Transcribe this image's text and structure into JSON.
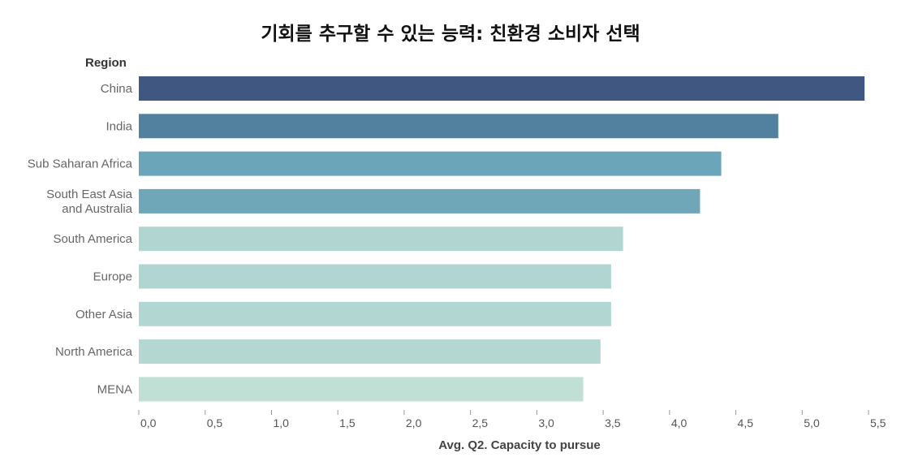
{
  "chart_data": {
    "type": "bar",
    "orientation": "horizontal",
    "title": "기회를 추구할 수 있는 능력: 친환경 소비자 선택",
    "ylabel": "Region",
    "xlabel": "Avg. Q2. Capacity to pursue",
    "categories": [
      "China",
      "India",
      "Sub Saharan Africa",
      "South East Asia and Australia",
      "South America",
      "Europe",
      "Other Asia",
      "North America",
      "MENA"
    ],
    "category_lines": [
      [
        "China"
      ],
      [
        "India"
      ],
      [
        "Sub Saharan Africa"
      ],
      [
        "South East Asia",
        "and Australia"
      ],
      [
        "South America"
      ],
      [
        "Europe"
      ],
      [
        "Other Asia"
      ],
      [
        "North America"
      ],
      [
        "MENA"
      ]
    ],
    "values": [
      5.47,
      4.82,
      4.39,
      4.23,
      3.65,
      3.56,
      3.56,
      3.48,
      3.35
    ],
    "colors": [
      "#3f5781",
      "#52819f",
      "#6aa5b9",
      "#6fa6b8",
      "#b1d6d1",
      "#b1d6d1",
      "#b2d6d2",
      "#b4d7d2",
      "#c0e0d6"
    ],
    "xlim": [
      0,
      5.5
    ],
    "xticks": [
      "0,0",
      "0,5",
      "1,0",
      "1,5",
      "2,0",
      "2,5",
      "3,0",
      "3,5",
      "4,0",
      "4,5",
      "5,0",
      "5,5"
    ],
    "grid": false,
    "legend": "none"
  }
}
